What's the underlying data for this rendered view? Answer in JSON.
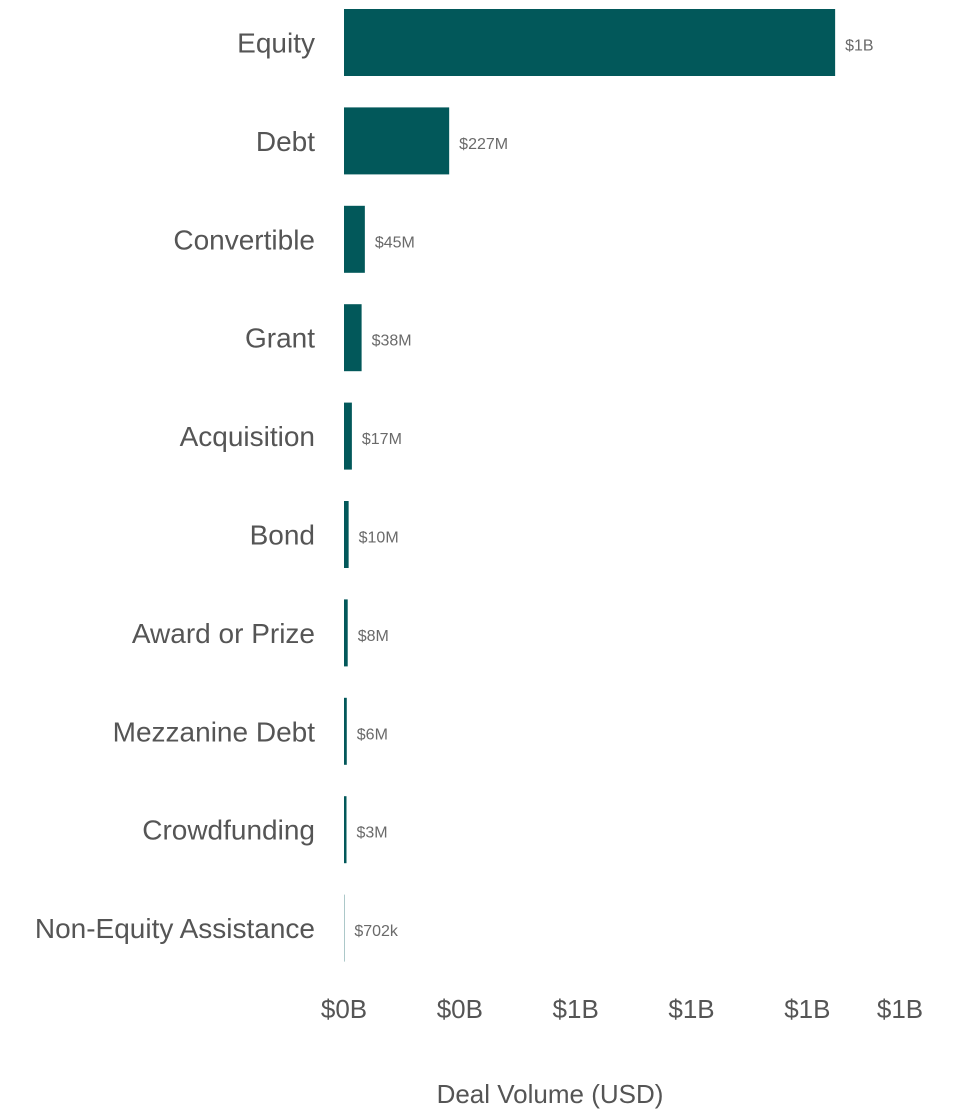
{
  "chart_data": {
    "type": "bar",
    "orientation": "horizontal",
    "title": "",
    "xlabel": "Deal Volume (USD)",
    "ylabel": "",
    "categories": [
      "Equity",
      "Debt",
      "Convertible",
      "Grant",
      "Acquisition",
      "Bond",
      "Award or Prize",
      "Mezzanine Debt",
      "Crowdfunding",
      "Non-Equity Assistance"
    ],
    "values": [
      1060000000,
      227000000,
      45000000,
      38000000,
      17000000,
      10000000,
      8000000,
      6000000,
      3000000,
      702000
    ],
    "value_labels": [
      "$1B",
      "$227M",
      "$45M",
      "$38M",
      "$17M",
      "$10M",
      "$8M",
      "$6M",
      "$3M",
      "$702k"
    ],
    "x_ticks": [
      0,
      250000000,
      500000000,
      750000000,
      1000000000,
      1200000000
    ],
    "x_tick_labels": [
      "$0B",
      "$0B",
      "$1B",
      "$1B",
      "$1B",
      "$1B"
    ],
    "xlim": [
      0,
      1200000000
    ],
    "bar_color": "#02585a",
    "grid": false,
    "legend": "none"
  }
}
